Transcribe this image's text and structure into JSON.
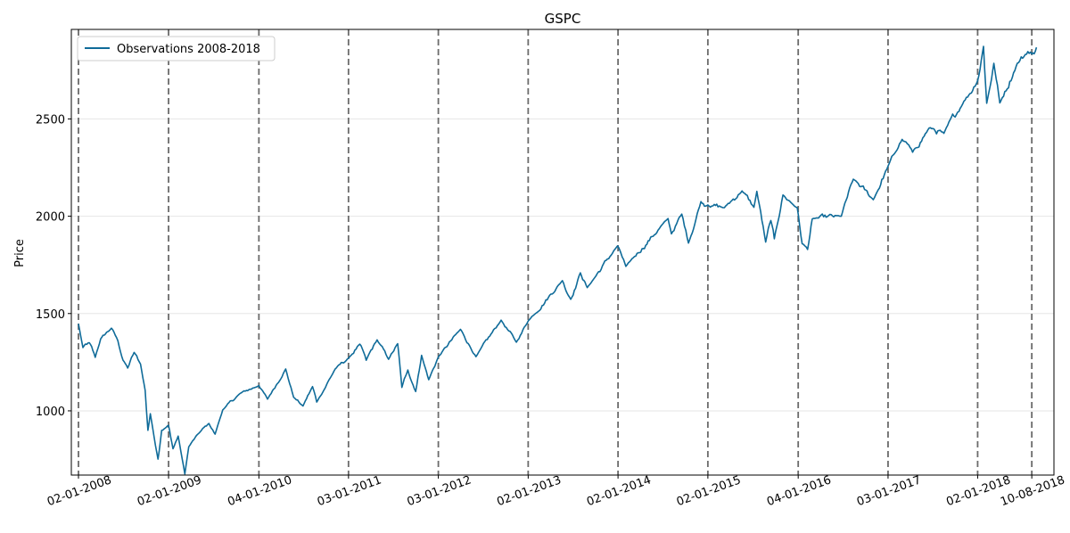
{
  "chart_data": {
    "type": "line",
    "title": "GSPC",
    "xlabel": "",
    "ylabel": "Price",
    "ylim": [
      670,
      2960
    ],
    "y_ticks": [
      1000,
      1500,
      2000,
      2500
    ],
    "grid": "horizontal",
    "legend": {
      "placement": "top-left",
      "entries": [
        "Observations 2008-2018"
      ]
    },
    "colors": {
      "line": "#0f6b99",
      "vline": "#6b6b6b",
      "grid": "#e6e6e6"
    },
    "x_range": [
      "2007-12-04",
      "2018-11-08"
    ],
    "x_ticks": [
      {
        "label": "02-01-2008",
        "date": "2008-01-02"
      },
      {
        "label": "02-01-2009",
        "date": "2009-01-02"
      },
      {
        "label": "04-01-2010",
        "date": "2010-01-04"
      },
      {
        "label": "03-01-2011",
        "date": "2011-01-03"
      },
      {
        "label": "03-01-2012",
        "date": "2012-01-03"
      },
      {
        "label": "02-01-2013",
        "date": "2013-01-02"
      },
      {
        "label": "02-01-2014",
        "date": "2014-01-02"
      },
      {
        "label": "02-01-2015",
        "date": "2015-01-02"
      },
      {
        "label": "04-01-2016",
        "date": "2016-01-04"
      },
      {
        "label": "03-01-2017",
        "date": "2017-01-03"
      },
      {
        "label": "02-01-2018",
        "date": "2018-01-02"
      },
      {
        "label": "10-08-2018",
        "date": "2018-08-10"
      }
    ],
    "series": [
      {
        "name": "Observations 2008-2018",
        "points": [
          [
            "2008-01-02",
            1447
          ],
          [
            "2008-01-20",
            1325
          ],
          [
            "2008-02-15",
            1350
          ],
          [
            "2008-03-10",
            1275
          ],
          [
            "2008-04-01",
            1370
          ],
          [
            "2008-05-15",
            1425
          ],
          [
            "2008-06-10",
            1360
          ],
          [
            "2008-07-01",
            1260
          ],
          [
            "2008-07-20",
            1220
          ],
          [
            "2008-08-15",
            1300
          ],
          [
            "2008-09-10",
            1240
          ],
          [
            "2008-09-29",
            1105
          ],
          [
            "2008-10-10",
            900
          ],
          [
            "2008-10-20",
            985
          ],
          [
            "2008-11-20",
            752
          ],
          [
            "2008-12-05",
            900
          ],
          [
            "2009-01-02",
            925
          ],
          [
            "2009-01-20",
            805
          ],
          [
            "2009-02-10",
            870
          ],
          [
            "2009-03-09",
            676
          ],
          [
            "2009-03-25",
            815
          ],
          [
            "2009-05-01",
            880
          ],
          [
            "2009-06-15",
            935
          ],
          [
            "2009-07-10",
            880
          ],
          [
            "2009-08-10",
            1005
          ],
          [
            "2009-10-20",
            1090
          ],
          [
            "2010-01-04",
            1130
          ],
          [
            "2010-02-08",
            1060
          ],
          [
            "2010-04-23",
            1215
          ],
          [
            "2010-05-25",
            1070
          ],
          [
            "2010-07-02",
            1025
          ],
          [
            "2010-08-10",
            1125
          ],
          [
            "2010-08-27",
            1045
          ],
          [
            "2010-11-10",
            1215
          ],
          [
            "2011-01-03",
            1270
          ],
          [
            "2011-02-18",
            1343
          ],
          [
            "2011-03-16",
            1260
          ],
          [
            "2011-04-29",
            1365
          ],
          [
            "2011-06-15",
            1265
          ],
          [
            "2011-07-22",
            1345
          ],
          [
            "2011-08-08",
            1120
          ],
          [
            "2011-09-01",
            1210
          ],
          [
            "2011-10-03",
            1099
          ],
          [
            "2011-10-27",
            1285
          ],
          [
            "2011-11-25",
            1160
          ],
          [
            "2012-01-03",
            1277
          ],
          [
            "2012-04-02",
            1419
          ],
          [
            "2012-06-04",
            1278
          ],
          [
            "2012-09-14",
            1466
          ],
          [
            "2012-11-15",
            1353
          ],
          [
            "2013-01-02",
            1462
          ],
          [
            "2013-05-21",
            1669
          ],
          [
            "2013-06-24",
            1573
          ],
          [
            "2013-08-02",
            1709
          ],
          [
            "2013-08-30",
            1633
          ],
          [
            "2013-12-31",
            1848
          ],
          [
            "2014-02-03",
            1742
          ],
          [
            "2014-07-24",
            1988
          ],
          [
            "2014-08-07",
            1910
          ],
          [
            "2014-09-18",
            2011
          ],
          [
            "2014-10-15",
            1862
          ],
          [
            "2014-12-05",
            2075
          ],
          [
            "2015-01-02",
            2058
          ],
          [
            "2015-03-10",
            2044
          ],
          [
            "2015-05-21",
            2130
          ],
          [
            "2015-07-08",
            2046
          ],
          [
            "2015-07-20",
            2128
          ],
          [
            "2015-08-25",
            1867
          ],
          [
            "2015-09-15",
            1978
          ],
          [
            "2015-09-29",
            1884
          ],
          [
            "2015-11-03",
            2109
          ],
          [
            "2015-12-31",
            2044
          ],
          [
            "2016-01-20",
            1859
          ],
          [
            "2016-02-11",
            1829
          ],
          [
            "2016-03-01",
            1986
          ],
          [
            "2016-06-27",
            2000
          ],
          [
            "2016-08-15",
            2190
          ],
          [
            "2016-11-04",
            2085
          ],
          [
            "2017-01-03",
            2257
          ],
          [
            "2017-03-01",
            2395
          ],
          [
            "2017-04-13",
            2329
          ],
          [
            "2017-06-19",
            2453
          ],
          [
            "2017-08-18",
            2426
          ],
          [
            "2017-11-07",
            2591
          ],
          [
            "2018-01-02",
            2696
          ],
          [
            "2018-01-26",
            2873
          ],
          [
            "2018-02-08",
            2581
          ],
          [
            "2018-03-09",
            2786
          ],
          [
            "2018-04-02",
            2582
          ],
          [
            "2018-06-12",
            2786
          ],
          [
            "2018-07-25",
            2846
          ],
          [
            "2018-08-10",
            2833
          ],
          [
            "2018-08-29",
            2868
          ]
        ]
      }
    ]
  }
}
